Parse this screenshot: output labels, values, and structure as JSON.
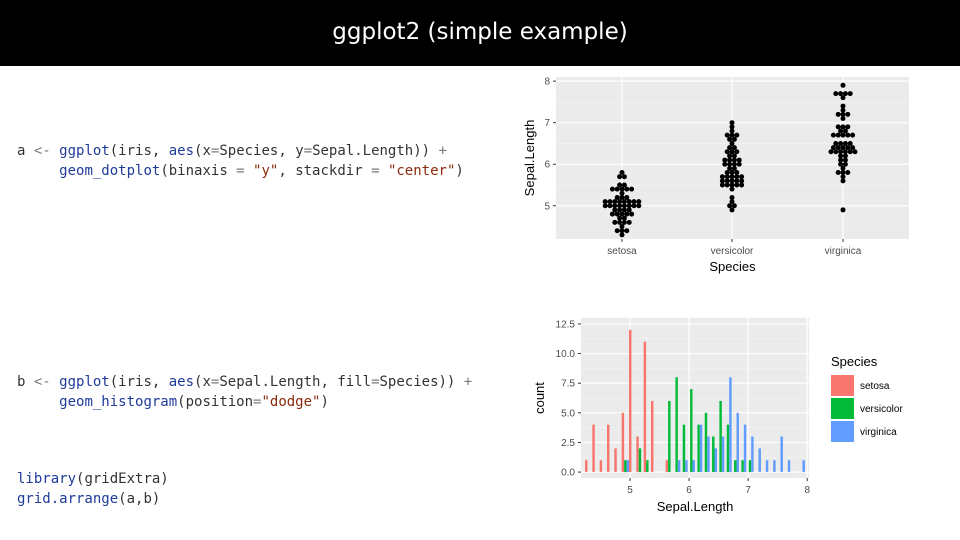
{
  "slide": {
    "title": "ggplot2 (simple example)"
  },
  "code": {
    "a": {
      "line1": [
        {
          "t": "a ",
          "c": ""
        },
        {
          "t": "<-",
          "c": "op"
        },
        {
          "t": " ",
          "c": ""
        },
        {
          "t": "ggplot",
          "c": "fn"
        },
        {
          "t": "(iris, ",
          "c": ""
        },
        {
          "t": "aes",
          "c": "fn"
        },
        {
          "t": "(x",
          "c": ""
        },
        {
          "t": "=",
          "c": "op"
        },
        {
          "t": "Species, y",
          "c": ""
        },
        {
          "t": "=",
          "c": "op"
        },
        {
          "t": "Sepal.Length)) ",
          "c": ""
        },
        {
          "t": "+",
          "c": "op"
        }
      ],
      "line2": [
        {
          "t": "     ",
          "c": ""
        },
        {
          "t": "geom_dotplot",
          "c": "fn"
        },
        {
          "t": "(binaxis ",
          "c": ""
        },
        {
          "t": "=",
          "c": "op"
        },
        {
          "t": " ",
          "c": ""
        },
        {
          "t": "\"y\"",
          "c": "str"
        },
        {
          "t": ", stackdir ",
          "c": ""
        },
        {
          "t": "=",
          "c": "op"
        },
        {
          "t": " ",
          "c": ""
        },
        {
          "t": "\"center\"",
          "c": "str"
        },
        {
          "t": ")",
          "c": ""
        }
      ]
    },
    "b": {
      "line1": [
        {
          "t": "b ",
          "c": ""
        },
        {
          "t": "<-",
          "c": "op"
        },
        {
          "t": " ",
          "c": ""
        },
        {
          "t": "ggplot",
          "c": "fn"
        },
        {
          "t": "(iris, ",
          "c": ""
        },
        {
          "t": "aes",
          "c": "fn"
        },
        {
          "t": "(x",
          "c": ""
        },
        {
          "t": "=",
          "c": "op"
        },
        {
          "t": "Sepal.Length, fill",
          "c": ""
        },
        {
          "t": "=",
          "c": "op"
        },
        {
          "t": "Species)) ",
          "c": ""
        },
        {
          "t": "+",
          "c": "op"
        }
      ],
      "line2": [
        {
          "t": "     ",
          "c": ""
        },
        {
          "t": "geom_histogram",
          "c": "fn"
        },
        {
          "t": "(position",
          "c": ""
        },
        {
          "t": "=",
          "c": "op"
        },
        {
          "t": "\"dodge\"",
          "c": "str"
        },
        {
          "t": ")",
          "c": ""
        }
      ]
    },
    "c": {
      "line1": [
        {
          "t": "library",
          "c": "fn"
        },
        {
          "t": "(gridExtra)",
          "c": ""
        }
      ],
      "line2": [
        {
          "t": "grid.arrange",
          "c": "fn"
        },
        {
          "t": "(a,b)",
          "c": ""
        }
      ]
    }
  },
  "chart_data": [
    {
      "type": "scatter",
      "subtype": "dotplot",
      "xlabel": "Species",
      "ylabel": "Sepal.Length",
      "categories": [
        "setosa",
        "versicolor",
        "virginica"
      ],
      "yticks": [
        5,
        6,
        7,
        8
      ],
      "ylim": [
        4.2,
        8.1
      ],
      "grid": true,
      "background": "#ebebeb",
      "dot_color": "#000000",
      "stacks": [
        {
          "category": "setosa",
          "levels": [
            {
              "y": 4.3,
              "n": 1
            },
            {
              "y": 4.4,
              "n": 3
            },
            {
              "y": 4.5,
              "n": 1
            },
            {
              "y": 4.6,
              "n": 4
            },
            {
              "y": 4.7,
              "n": 2
            },
            {
              "y": 4.8,
              "n": 5
            },
            {
              "y": 4.9,
              "n": 4
            },
            {
              "y": 5.0,
              "n": 8
            },
            {
              "y": 5.1,
              "n": 8
            },
            {
              "y": 5.2,
              "n": 3
            },
            {
              "y": 5.3,
              "n": 1
            },
            {
              "y": 5.4,
              "n": 5
            },
            {
              "y": 5.5,
              "n": 2
            },
            {
              "y": 5.7,
              "n": 2
            },
            {
              "y": 5.8,
              "n": 1
            }
          ]
        },
        {
          "category": "versicolor",
          "levels": [
            {
              "y": 4.9,
              "n": 1
            },
            {
              "y": 5.0,
              "n": 2
            },
            {
              "y": 5.1,
              "n": 1
            },
            {
              "y": 5.2,
              "n": 1
            },
            {
              "y": 5.4,
              "n": 1
            },
            {
              "y": 5.5,
              "n": 5
            },
            {
              "y": 5.6,
              "n": 5
            },
            {
              "y": 5.7,
              "n": 5
            },
            {
              "y": 5.8,
              "n": 3
            },
            {
              "y": 5.9,
              "n": 2
            },
            {
              "y": 6.0,
              "n": 4
            },
            {
              "y": 6.1,
              "n": 4
            },
            {
              "y": 6.2,
              "n": 2
            },
            {
              "y": 6.3,
              "n": 3
            },
            {
              "y": 6.4,
              "n": 2
            },
            {
              "y": 6.5,
              "n": 1
            },
            {
              "y": 6.6,
              "n": 2
            },
            {
              "y": 6.7,
              "n": 3
            },
            {
              "y": 6.8,
              "n": 1
            },
            {
              "y": 6.9,
              "n": 1
            },
            {
              "y": 7.0,
              "n": 1
            }
          ]
        },
        {
          "category": "virginica",
          "levels": [
            {
              "y": 4.9,
              "n": 1
            },
            {
              "y": 5.6,
              "n": 1
            },
            {
              "y": 5.7,
              "n": 1
            },
            {
              "y": 5.8,
              "n": 3
            },
            {
              "y": 5.9,
              "n": 1
            },
            {
              "y": 6.0,
              "n": 2
            },
            {
              "y": 6.1,
              "n": 2
            },
            {
              "y": 6.2,
              "n": 2
            },
            {
              "y": 6.3,
              "n": 6
            },
            {
              "y": 6.4,
              "n": 5
            },
            {
              "y": 6.5,
              "n": 4
            },
            {
              "y": 6.7,
              "n": 5
            },
            {
              "y": 6.8,
              "n": 2
            },
            {
              "y": 6.9,
              "n": 3
            },
            {
              "y": 7.1,
              "n": 1
            },
            {
              "y": 7.2,
              "n": 3
            },
            {
              "y": 7.3,
              "n": 1
            },
            {
              "y": 7.4,
              "n": 1
            },
            {
              "y": 7.6,
              "n": 1
            },
            {
              "y": 7.7,
              "n": 4
            },
            {
              "y": 7.9,
              "n": 1
            }
          ]
        }
      ]
    },
    {
      "type": "bar",
      "subtype": "histogram",
      "xlabel": "Sepal.Length",
      "ylabel": "count",
      "xticks": [
        5,
        6,
        7,
        8
      ],
      "yticks": [
        0.0,
        2.5,
        5.0,
        7.5,
        10.0,
        12.5
      ],
      "ytick_labels": [
        "0.0",
        "2.5",
        "5.0",
        "7.5",
        "10.0",
        "12.5"
      ],
      "xlim": [
        4.17,
        8.03
      ],
      "ylim": [
        -0.5,
        13
      ],
      "grid": true,
      "background": "#ebebeb",
      "bin_width": 0.1241,
      "bin_start": 4.238,
      "legend": {
        "title": "Species",
        "position": "right"
      },
      "series": [
        {
          "name": "setosa",
          "color": "#f8766d",
          "counts": [
            1,
            4,
            1,
            4,
            2,
            5,
            12,
            3,
            11,
            6,
            0,
            1,
            0,
            0,
            0,
            0,
            0,
            0,
            0,
            0,
            0,
            0,
            0,
            0,
            0,
            0,
            0,
            0,
            0,
            0
          ]
        },
        {
          "name": "versicolor",
          "color": "#00ba38",
          "counts": [
            0,
            0,
            0,
            0,
            0,
            1,
            0,
            2,
            1,
            0,
            0,
            6,
            8,
            4,
            7,
            4,
            5,
            3,
            6,
            4,
            1,
            1,
            1,
            0,
            0,
            0,
            0,
            0,
            0,
            0
          ]
        },
        {
          "name": "virginica",
          "color": "#619cff",
          "counts": [
            0,
            0,
            0,
            0,
            0,
            1,
            0,
            0,
            0,
            0,
            0,
            0,
            1,
            1,
            1,
            4,
            3,
            2,
            3,
            8,
            5,
            4,
            3,
            2,
            1,
            1,
            3,
            1,
            0,
            1
          ]
        }
      ]
    }
  ]
}
